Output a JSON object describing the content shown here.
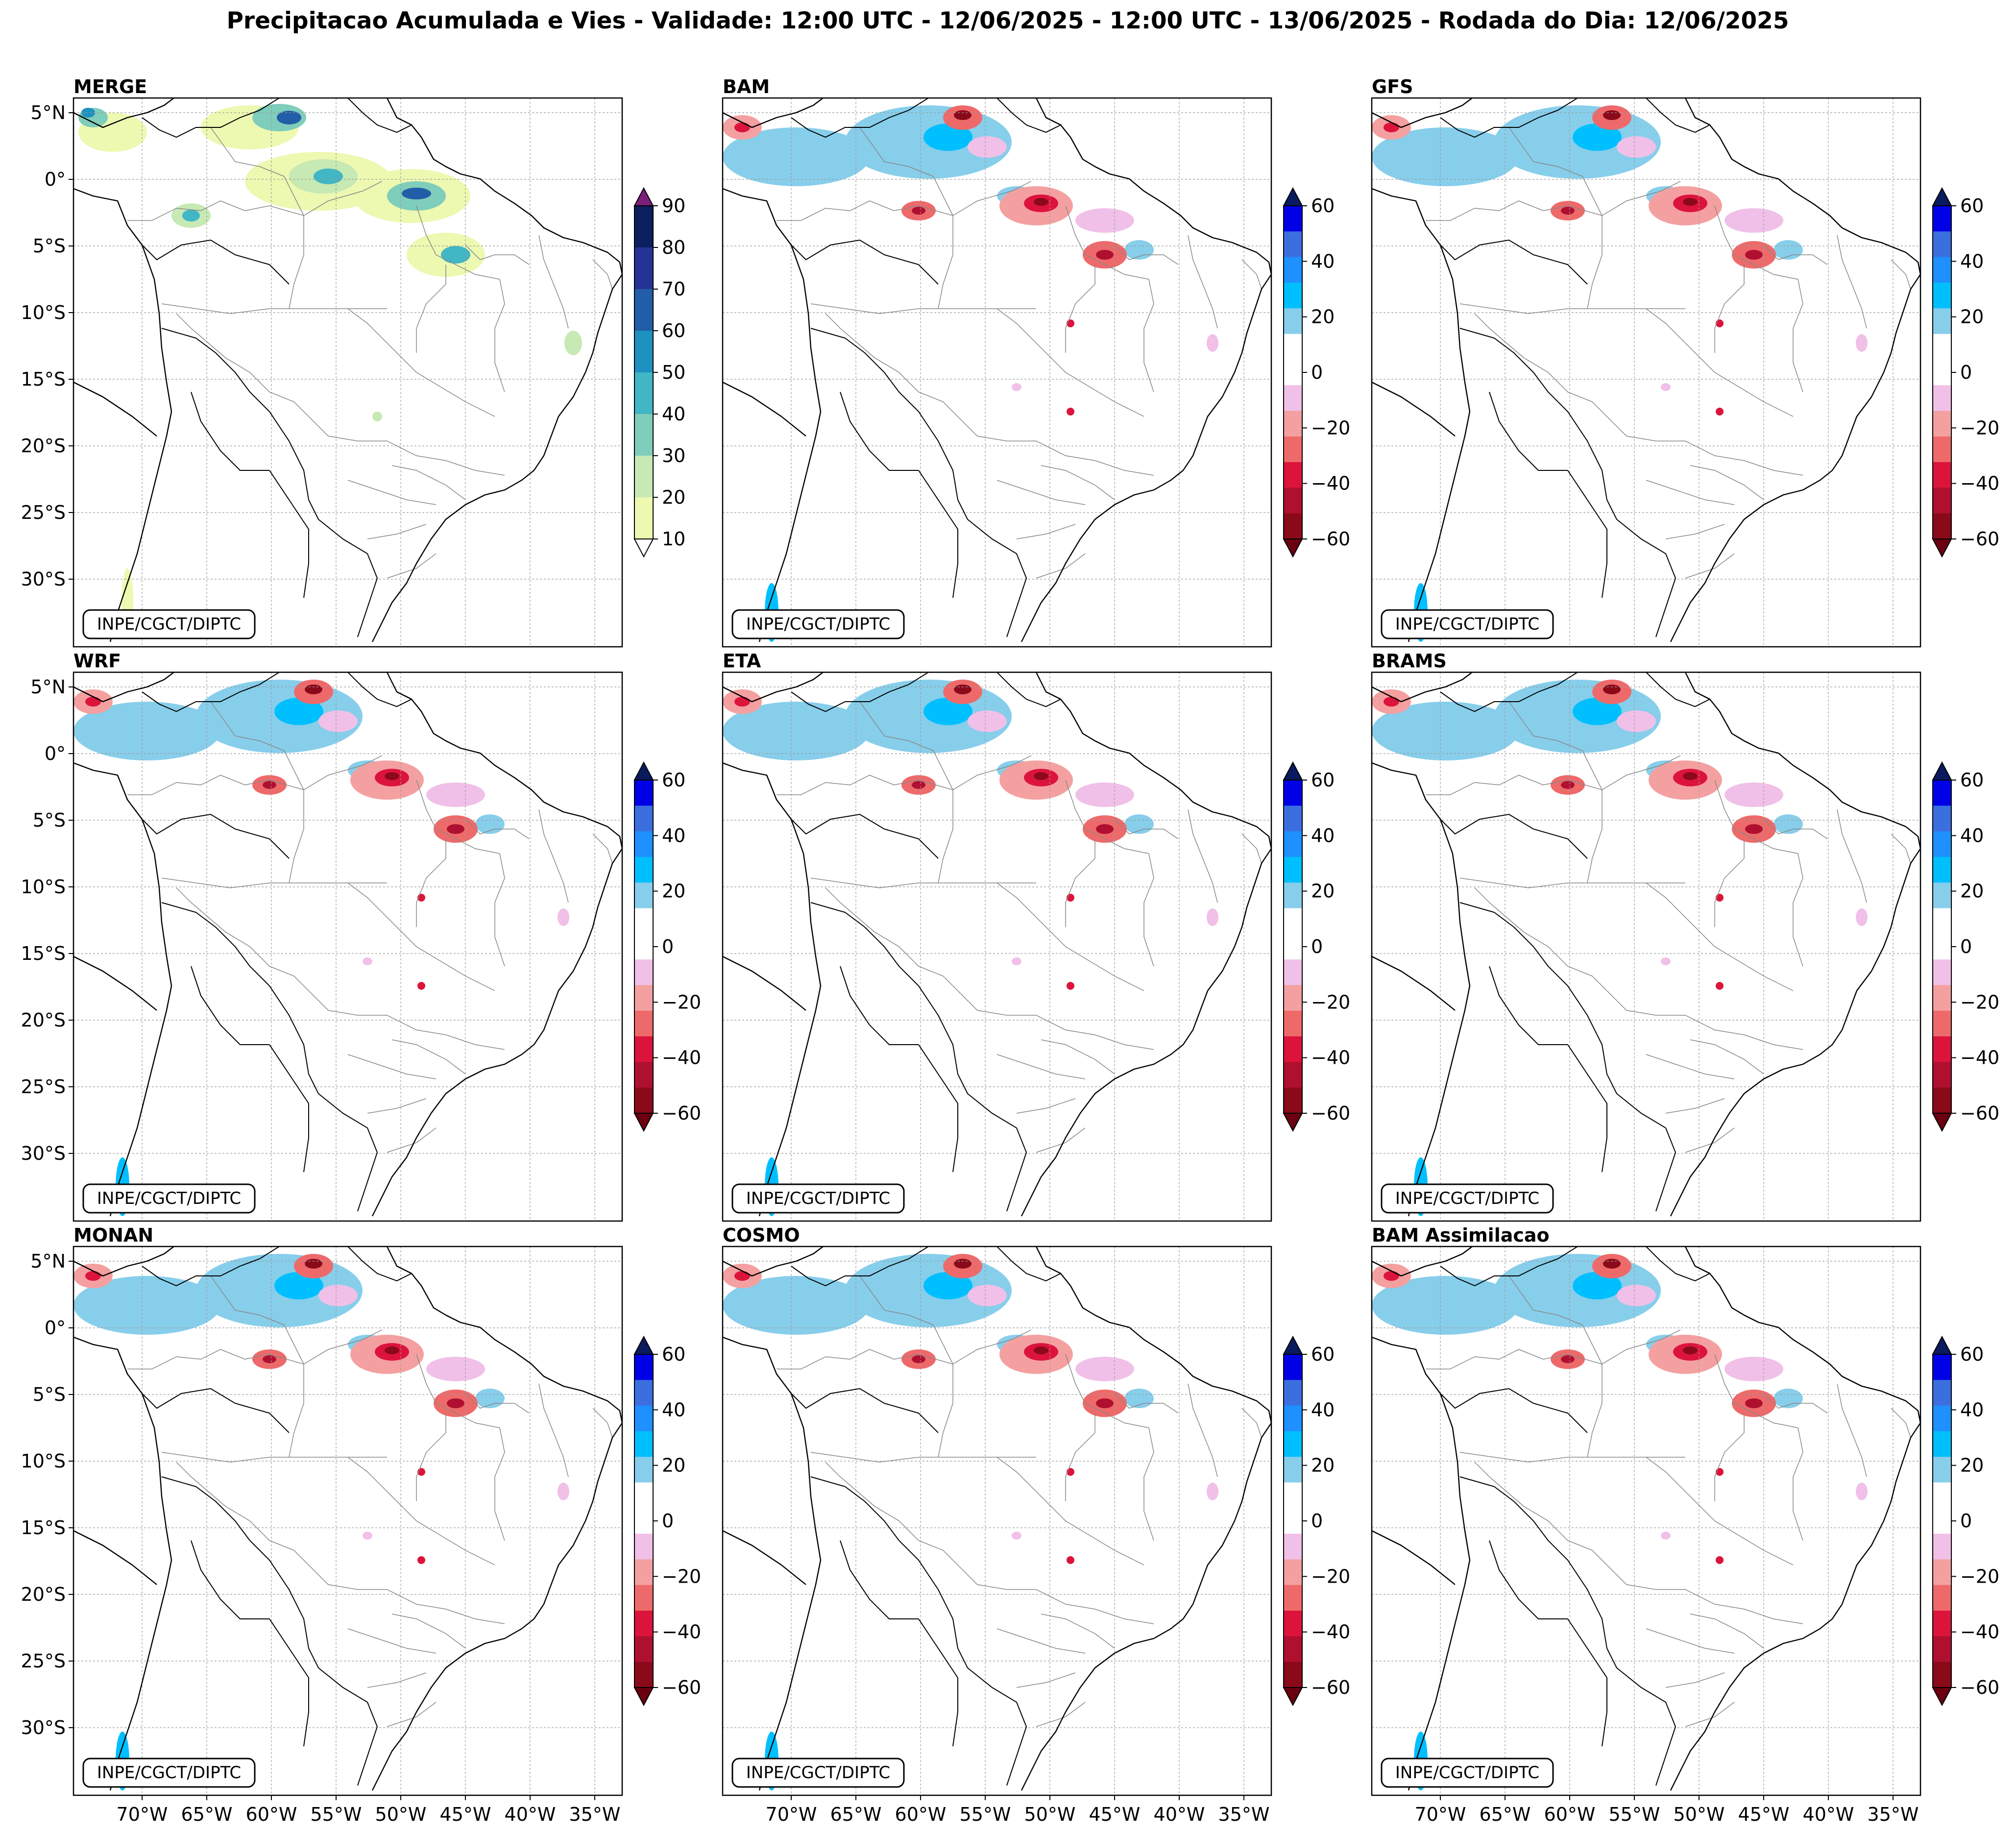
{
  "title": "Precipitacao Acumulada e Vies - Validade: 12:00 UTC - 12/06/2025 - 12:00 UTC - 13/06/2025 - Rodada do Dia: 12/06/2025",
  "lat_labels": [
    "5°N",
    "0°",
    "5°S",
    "10°S",
    "15°S",
    "20°S",
    "25°S",
    "30°S"
  ],
  "lon_labels": [
    "70°W",
    "65°W",
    "60°W",
    "55°W",
    "50°W",
    "45°W",
    "40°W",
    "35°W"
  ],
  "credit": "INPE/CGCT/DIPTC",
  "panels": [
    {
      "name": "MERGE",
      "scale": "precip"
    },
    {
      "name": "BAM",
      "scale": "bias"
    },
    {
      "name": "GFS",
      "scale": "bias"
    },
    {
      "name": "WRF",
      "scale": "bias"
    },
    {
      "name": "ETA",
      "scale": "bias"
    },
    {
      "name": "BRAMS",
      "scale": "bias"
    },
    {
      "name": "MONAN",
      "scale": "bias"
    },
    {
      "name": "COSMO",
      "scale": "bias"
    },
    {
      "name": "BAM Assimilacao",
      "scale": "bias"
    }
  ],
  "precip_scale": {
    "ticks": [
      "10",
      "20",
      "30",
      "40",
      "50",
      "60",
      "70",
      "80",
      "90"
    ],
    "colors": [
      "#edf8b1",
      "#c7e9b4",
      "#7fcdbb",
      "#41b6c4",
      "#1d91c0",
      "#225ea8",
      "#253494",
      "#0c1f5e"
    ],
    "under": "#ffffff",
    "over": "#7a1f7a"
  },
  "bias_scale": {
    "ticks": [
      "60",
      "40",
      "20",
      "0",
      "−20",
      "−40",
      "−60"
    ],
    "colors": [
      "#0000e6",
      "#3b6fe0",
      "#1e90ff",
      "#00bfff",
      "#87ceeb",
      "#ffffff",
      "#ffffff",
      "#f0c0e8",
      "#f4a0a0",
      "#ee6a6a",
      "#dc143c",
      "#b01030",
      "#8b0a1a"
    ],
    "over": "#0a1a5e",
    "under": "#6b0010"
  }
}
